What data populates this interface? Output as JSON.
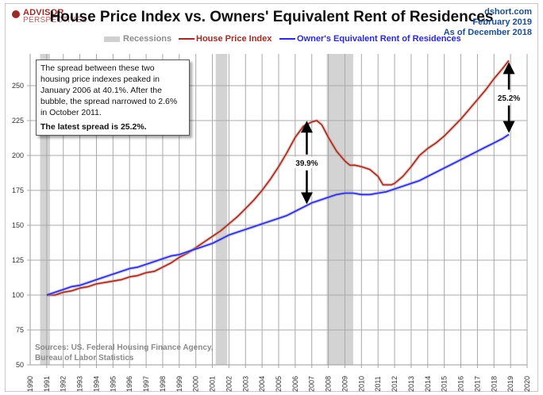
{
  "header": {
    "logo_line1": "ADVISOR",
    "logo_line2": "PERSPECTIVES",
    "title": "House Price Index vs. Owners' Equivalent Rent of Residences",
    "source_site": "dshort.com",
    "date": "February 2019",
    "as_of": "As of December 2018"
  },
  "annotation": {
    "text": "The spread between these two housing price indexes peaked in January 2006 at 40.1%. After the bubble, the spread narrowed to 2.6% in October 2011.",
    "bold_text": "The latest spread is 25.2%."
  },
  "sources": {
    "line1": "Sources: US. Federal Housing Finance Agency,",
    "line2": "Bureau of Labor Statistics"
  },
  "colors": {
    "hpi": "#9b2d24",
    "oer": "#2a2ad0",
    "recession": "#d3d3d3",
    "grid": "#a8a8a8"
  },
  "chart_data": {
    "type": "line",
    "title": "House Price Index vs. Owners' Equivalent Rent of Residences",
    "xlabel": "",
    "ylabel": "",
    "xlim": [
      1990,
      2020
    ],
    "ylim": [
      50,
      270
    ],
    "x_ticks": [
      "1990",
      "1991",
      "1992",
      "1993",
      "1994",
      "1995",
      "1996",
      "1997",
      "1998",
      "1999",
      "2000",
      "2001",
      "2002",
      "2003",
      "2004",
      "2005",
      "2006",
      "2007",
      "2008",
      "2009",
      "2010",
      "2011",
      "2012",
      "2013",
      "2014",
      "2015",
      "2016",
      "2017",
      "2018",
      "2019",
      "2020"
    ],
    "y_ticks": [
      50,
      75,
      100,
      125,
      150,
      175,
      200,
      225,
      250
    ],
    "grid": true,
    "legend": {
      "position": "top",
      "entries": [
        {
          "name": "Recessions",
          "kind": "band"
        },
        {
          "name": "House Price Index",
          "kind": "line"
        },
        {
          "name": "Owner's Equivalent Rent of Residences",
          "kind": "line"
        }
      ]
    },
    "recessions": [
      [
        1990.6,
        1991.2
      ],
      [
        2001.2,
        2001.9
      ],
      [
        2007.9,
        2009.5
      ]
    ],
    "series": [
      {
        "name": "House Price Index",
        "x": [
          1991.0,
          1991.5,
          1992.0,
          1992.5,
          1993.0,
          1993.5,
          1994.0,
          1994.5,
          1995.0,
          1995.5,
          1996.0,
          1996.5,
          1997.0,
          1997.5,
          1998.0,
          1998.5,
          1999.0,
          1999.5,
          2000.0,
          2000.5,
          2001.0,
          2001.5,
          2002.0,
          2002.5,
          2003.0,
          2003.5,
          2004.0,
          2004.5,
          2005.0,
          2005.5,
          2006.0,
          2006.5,
          2007.0,
          2007.3,
          2007.6,
          2008.0,
          2008.5,
          2009.0,
          2009.3,
          2009.6,
          2010.0,
          2010.5,
          2011.0,
          2011.3,
          2011.8,
          2012.0,
          2012.5,
          2013.0,
          2013.5,
          2014.0,
          2014.5,
          2015.0,
          2015.5,
          2016.0,
          2016.5,
          2017.0,
          2017.5,
          2018.0,
          2018.5,
          2018.9
        ],
        "values": [
          100,
          100,
          102,
          103,
          105,
          106,
          108,
          109,
          110,
          111,
          113,
          114,
          116,
          117,
          120,
          123,
          127,
          130,
          134,
          138,
          142,
          146,
          151,
          156,
          162,
          168,
          175,
          183,
          192,
          202,
          213,
          221,
          224,
          225,
          222,
          213,
          203,
          196,
          193,
          193,
          192,
          190,
          185,
          179,
          179,
          180,
          185,
          192,
          200,
          205,
          209,
          214,
          220,
          226,
          233,
          240,
          247,
          255,
          262,
          268
        ]
      },
      {
        "name": "Owner's Equivalent Rent of Residences",
        "x": [
          1991.0,
          1991.5,
          1992.0,
          1992.5,
          1993.0,
          1993.5,
          1994.0,
          1994.5,
          1995.0,
          1995.5,
          1996.0,
          1996.5,
          1997.0,
          1997.5,
          1998.0,
          1998.5,
          1999.0,
          1999.5,
          2000.0,
          2000.5,
          2001.0,
          2001.5,
          2002.0,
          2002.5,
          2003.0,
          2003.5,
          2004.0,
          2004.5,
          2005.0,
          2005.5,
          2006.0,
          2006.5,
          2007.0,
          2007.5,
          2008.0,
          2008.5,
          2009.0,
          2009.5,
          2010.0,
          2010.5,
          2011.0,
          2011.5,
          2012.0,
          2012.5,
          2013.0,
          2013.5,
          2014.0,
          2014.5,
          2015.0,
          2015.5,
          2016.0,
          2016.5,
          2017.0,
          2017.5,
          2018.0,
          2018.5,
          2018.9
        ],
        "values": [
          100,
          102,
          104,
          106,
          107,
          109,
          111,
          113,
          115,
          117,
          119,
          120,
          122,
          124,
          126,
          128,
          129,
          131,
          133,
          135,
          137,
          140,
          143,
          145,
          147,
          149,
          151,
          153,
          155,
          157,
          160,
          163,
          166,
          168,
          170,
          172,
          173,
          173,
          172,
          172,
          173,
          174,
          176,
          178,
          180,
          182,
          185,
          188,
          191,
          194,
          197,
          200,
          203,
          206,
          209,
          212,
          215
        ]
      }
    ],
    "annotations": [
      {
        "label": "39.9%",
        "x": 2006.7,
        "from": 224,
        "to": 166
      },
      {
        "label": "25.2%",
        "x": 2018.9,
        "from": 266,
        "to": 217
      }
    ]
  }
}
